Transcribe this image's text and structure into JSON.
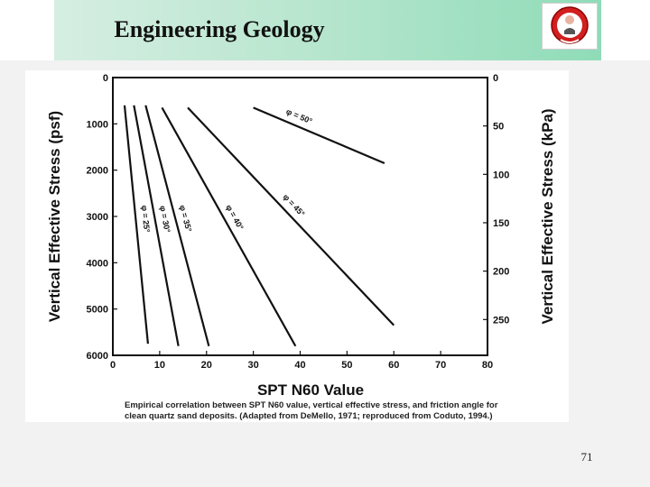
{
  "slide": {
    "title": "Engineering Geology",
    "number": "71"
  },
  "logo": {
    "icon": "university-seal-icon"
  },
  "figure": {
    "caption_line1": "Empirical correlation between SPT N60 value, vertical effective stress, and friction angle for",
    "caption_line2": "clean quartz sand deposits. (Adapted from DeMello, 1971; reproduced from Coduto, 1994.)"
  },
  "chart_data": {
    "type": "line",
    "xlabel": "SPT N60 Value",
    "ylabel_left": "Vertical Effective Stress (psf)",
    "ylabel_right": "Vertical Effective Stress (kPa)",
    "xlim": [
      0,
      80
    ],
    "ylim_left": [
      0,
      6000
    ],
    "ylim_right": [
      0,
      287
    ],
    "x_ticks": [
      0,
      10,
      20,
      30,
      40,
      50,
      60,
      70,
      80
    ],
    "y_ticks_left": [
      0,
      1000,
      2000,
      3000,
      4000,
      5000,
      6000
    ],
    "y_ticks_right": [
      0,
      50,
      100,
      150,
      200,
      250
    ],
    "y_reversed": true,
    "grid": false,
    "series": [
      {
        "name": "φ = 25°",
        "points": [
          [
            2.5,
            600
          ],
          [
            7.5,
            5750
          ]
        ]
      },
      {
        "name": "φ = 30°",
        "points": [
          [
            4.5,
            600
          ],
          [
            14,
            5800
          ]
        ]
      },
      {
        "name": "φ = 35°",
        "points": [
          [
            7,
            600
          ],
          [
            20.5,
            5800
          ]
        ]
      },
      {
        "name": "φ = 40°",
        "points": [
          [
            10.5,
            650
          ],
          [
            39,
            5800
          ]
        ]
      },
      {
        "name": "φ = 45°",
        "points": [
          [
            16,
            650
          ],
          [
            60,
            5350
          ]
        ]
      },
      {
        "name": "φ = 50°",
        "points": [
          [
            30,
            650
          ],
          [
            58,
            1850
          ]
        ]
      }
    ],
    "annotations": [
      {
        "text": "φ = 25°",
        "series": 0
      },
      {
        "text": "φ = 30°",
        "series": 1
      },
      {
        "text": "φ = 35°",
        "series": 2
      },
      {
        "text": "φ = 40°",
        "series": 3
      },
      {
        "text": "φ = 45°",
        "series": 4
      },
      {
        "text": "φ = 50°",
        "series": 5
      }
    ]
  }
}
